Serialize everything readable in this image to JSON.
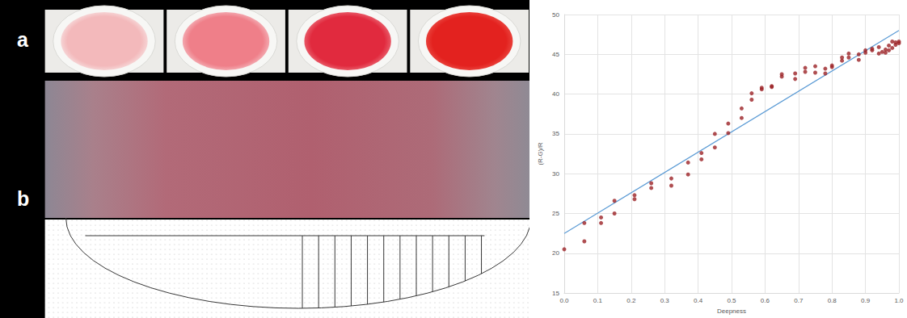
{
  "panels": {
    "labels": [
      "a",
      "b"
    ]
  },
  "chart_data": {
    "type": "scatter",
    "x_label": "Deepness",
    "y_label": "(R-G)/R",
    "xlim": [
      0,
      1
    ],
    "xticks": [
      {
        "value": 0,
        "label": "0.0"
      },
      0.1,
      0.2,
      0.3,
      0.4,
      0.5,
      0.6,
      0.7,
      0.8,
      0.9,
      {
        "value": 1,
        "label": "1.0"
      }
    ],
    "ylim": [
      15,
      50
    ],
    "yticks": [
      15,
      20,
      25,
      30,
      35,
      40,
      45,
      50
    ],
    "grid": true,
    "series": [
      {
        "type": "scatter",
        "color": "#9b2226",
        "marker": "circle",
        "x": [
          0.0,
          0.06,
          0.06,
          0.11,
          0.11,
          0.15,
          0.15,
          0.21,
          0.21,
          0.26,
          0.26,
          0.32,
          0.32,
          0.37,
          0.37,
          0.41,
          0.41,
          0.45,
          0.45,
          0.49,
          0.49,
          0.53,
          0.53,
          0.56,
          0.56,
          0.59,
          0.59,
          0.62,
          0.62,
          0.65,
          0.65,
          0.69,
          0.69,
          0.72,
          0.72,
          0.75,
          0.75,
          0.78,
          0.78,
          0.8,
          0.8,
          0.83,
          0.83,
          0.85,
          0.85,
          0.88,
          0.88,
          0.9,
          0.9,
          0.92,
          0.92,
          0.94,
          0.94,
          0.95,
          0.96,
          0.96,
          0.97,
          0.97,
          0.98,
          0.98,
          0.99,
          0.99,
          1.0,
          1.0
        ],
        "values": [
          20.5,
          21.5,
          23.8,
          23.8,
          24.5,
          25.0,
          26.6,
          26.8,
          27.3,
          28.2,
          28.8,
          28.5,
          29.4,
          29.9,
          31.4,
          31.8,
          32.6,
          33.3,
          35.0,
          35.1,
          36.3,
          37.0,
          38.2,
          39.3,
          40.1,
          40.6,
          40.8,
          41.0,
          40.9,
          42.2,
          42.5,
          41.9,
          42.6,
          42.8,
          43.3,
          42.7,
          43.5,
          42.6,
          43.2,
          43.4,
          43.6,
          44.2,
          44.6,
          44.6,
          45.1,
          44.3,
          45.0,
          45.5,
          45.2,
          45.5,
          45.7,
          45.9,
          45.1,
          45.3,
          45.6,
          45.2,
          46.1,
          45.5,
          46.6,
          45.8,
          46.2,
          46.5,
          46.4,
          46.6
        ]
      },
      {
        "type": "line",
        "color": "#5b9bd5",
        "line_style": "solid",
        "x": [
          0,
          1
        ],
        "values": [
          22.5,
          48
        ]
      }
    ]
  }
}
